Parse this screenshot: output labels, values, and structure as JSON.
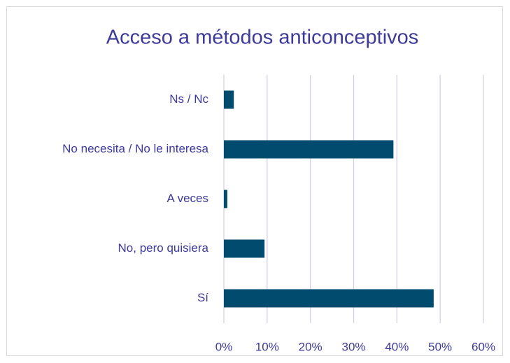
{
  "chart_data": {
    "type": "bar",
    "orientation": "horizontal",
    "title": "Acceso a métodos anticonceptivos",
    "categories": [
      "Ns / Nc",
      "No necesita / No le interesa",
      "A veces",
      "No, pero quisiera",
      "Sí"
    ],
    "values": [
      2.3,
      39.2,
      0.8,
      9.4,
      48.5
    ],
    "color": "#004b6e",
    "xlim": [
      0,
      60
    ],
    "xticks": [
      {
        "value": 0,
        "label": "0%"
      },
      {
        "value": 10,
        "label": "10%"
      },
      {
        "value": 20,
        "label": "20%"
      },
      {
        "value": 30,
        "label": "30%"
      },
      {
        "value": 40,
        "label": "40%"
      },
      {
        "value": 50,
        "label": "50%"
      },
      {
        "value": 60,
        "label": "60%"
      }
    ],
    "grid": true
  }
}
